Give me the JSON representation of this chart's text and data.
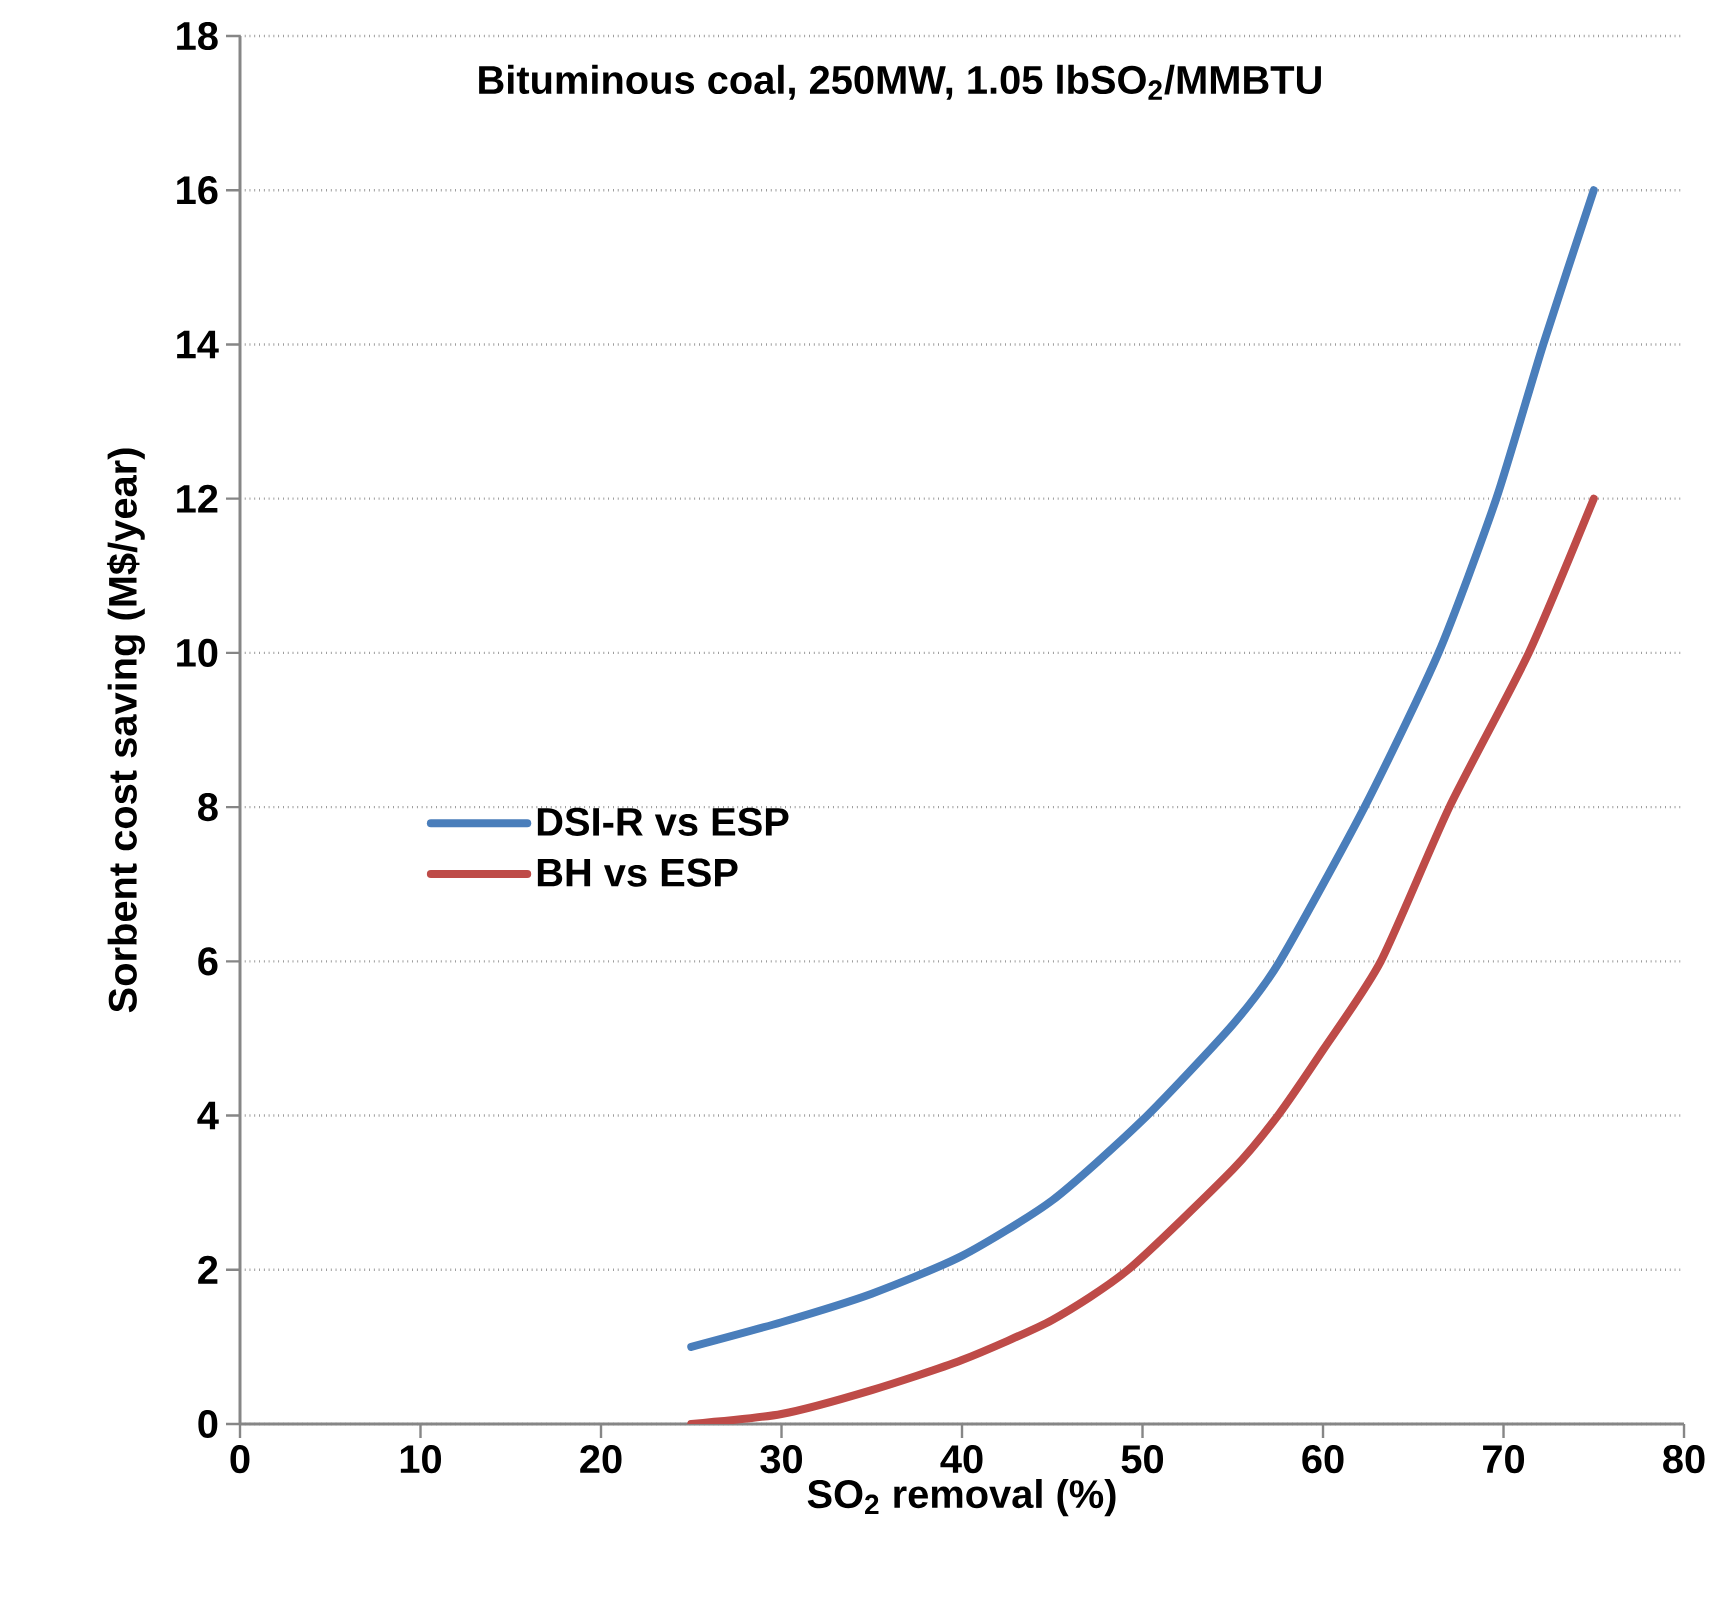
{
  "chart_data": {
    "type": "line",
    "title": "Bituminous coal, 250MW,  1.05 lbSO$_{2}$/MMBTU",
    "xlabel": "SO$_{2}$ removal (%)",
    "ylabel": "Sorbent cost saving (M$/year)",
    "xlim": [
      0,
      80
    ],
    "xticks": [
      0,
      10,
      20,
      30,
      40,
      50,
      60,
      70,
      80
    ],
    "ylim": [
      0,
      18
    ],
    "yticks": [
      0,
      2,
      4,
      6,
      8,
      10,
      12,
      14,
      16,
      18
    ],
    "grid": "y",
    "legend": "left",
    "marker": "none",
    "line_style": "solid",
    "series": [
      {
        "name": "DSI-R vs ESP",
        "color": "#4a7ebb",
        "x": [
          25,
          30,
          35,
          40,
          45,
          50,
          55,
          57.6,
          62.3,
          66.4,
          69.6,
          72.2,
          75
        ],
        "values": [
          1.0,
          1.32,
          1.69,
          2.18,
          2.9,
          3.94,
          5.18,
          6,
          8,
          10,
          12,
          14,
          16
        ]
      },
      {
        "name": "BH vs ESP",
        "color": "#be4b48",
        "x": [
          25,
          30,
          35,
          40,
          45,
          49.2,
          55,
          57.5,
          60,
          63.2,
          67,
          71.4,
          75
        ],
        "values": [
          0,
          0.13,
          0.44,
          0.83,
          1.35,
          2,
          3.3,
          4,
          4.85,
          6,
          8,
          10,
          12
        ]
      }
    ]
  }
}
